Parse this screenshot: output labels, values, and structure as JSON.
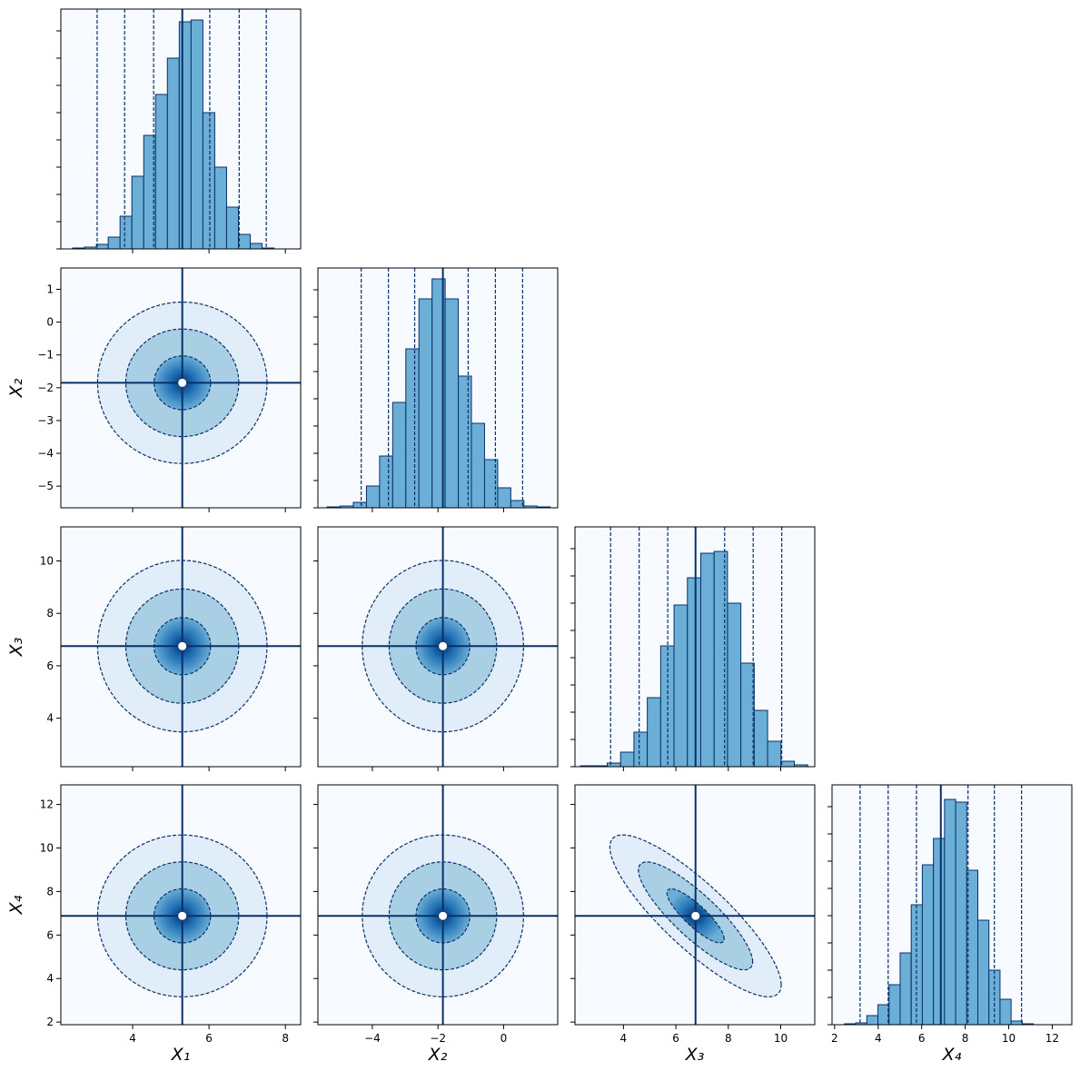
{
  "chart_data": {
    "type": "corner",
    "labels": [
      "X₁",
      "X₂",
      "X₃",
      "X₄"
    ],
    "limits": [
      [
        2.12,
        8.4
      ],
      [
        -5.66,
        1.65
      ],
      [
        2.15,
        11.3
      ],
      [
        1.88,
        12.9
      ]
    ],
    "xticks": [
      [
        4,
        6,
        8
      ],
      [
        {
          "value": -4,
          "label": "−4"
        },
        {
          "value": -2,
          "label": "−2"
        },
        0
      ],
      [
        4,
        6,
        8,
        10
      ],
      [
        2,
        4,
        6,
        8,
        10,
        12
      ]
    ],
    "yticks": [
      [],
      [
        1,
        0,
        {
          "value": -1,
          "label": "−1"
        },
        {
          "value": -2,
          "label": "−2"
        },
        {
          "value": -3,
          "label": "−3"
        },
        {
          "value": -4,
          "label": "−4"
        },
        {
          "value": -5,
          "label": "−5"
        }
      ],
      [
        4,
        6,
        8,
        10
      ],
      [
        2,
        4,
        6,
        8,
        10,
        12
      ]
    ],
    "truths": [
      5.3,
      -1.85,
      6.75,
      6.88
    ],
    "quantile_lines": [
      [
        3.07,
        3.79,
        4.55,
        6.02,
        6.79,
        7.5
      ],
      [
        -4.34,
        -3.51,
        -2.71,
        -1.08,
        -0.25,
        0.58
      ],
      [
        3.51,
        4.6,
        5.69,
        7.86,
        8.95,
        10.04
      ],
      [
        3.17,
        4.46,
        5.76,
        8.13,
        9.34,
        10.59
      ]
    ],
    "histograms": [
      {
        "bins": [
          2.43,
          2.74,
          3.05,
          3.36,
          3.67,
          3.98,
          4.29,
          4.6,
          4.91,
          5.22,
          5.53,
          5.84,
          6.15,
          6.46,
          6.77,
          7.08,
          7.39,
          7.7,
          8.01
        ],
        "counts": [
          1,
          2,
          5,
          13,
          36,
          80,
          125,
          170,
          210,
          250,
          252,
          150,
          90,
          46,
          16,
          6,
          1,
          0
        ]
      },
      {
        "bins": [
          -5.38,
          -4.98,
          -4.58,
          -4.18,
          -3.78,
          -3.38,
          -2.98,
          -2.58,
          -2.18,
          -1.78,
          -1.38,
          -0.98,
          -0.58,
          -0.18,
          0.22,
          0.62,
          1.02,
          1.42
        ],
        "counts": [
          1,
          2,
          6,
          24,
          57,
          116,
          175,
          230,
          252,
          230,
          145,
          93,
          53,
          22,
          8,
          2,
          1
        ]
      },
      {
        "bins": [
          2.36,
          2.87,
          3.38,
          3.89,
          4.4,
          4.91,
          5.42,
          5.93,
          6.44,
          6.95,
          7.46,
          7.97,
          8.48,
          8.99,
          9.5,
          10.01,
          10.52,
          11.03
        ],
        "counts": [
          1,
          1,
          4,
          16,
          38,
          76,
          133,
          178,
          208,
          235,
          237,
          180,
          114,
          62,
          28,
          6,
          2
        ]
      },
      {
        "bins": [
          2.46,
          2.97,
          3.48,
          3.99,
          4.5,
          5.01,
          5.52,
          6.03,
          6.54,
          7.05,
          7.56,
          8.07,
          8.58,
          9.09,
          9.6,
          10.11,
          10.62,
          11.13
        ],
        "counts": [
          1,
          2,
          10,
          22,
          44,
          79,
          132,
          176,
          205,
          248,
          245,
          170,
          115,
          60,
          28,
          4,
          1
        ]
      }
    ],
    "hist_ylim": [
      0,
      264
    ],
    "hist_yticks": [
      0,
      30,
      60,
      90,
      120,
      150,
      180,
      210,
      240
    ],
    "sigma": [
      0.74,
      0.82,
      1.09,
      1.24
    ],
    "rho": [
      [],
      [
        0
      ],
      [
        0,
        0
      ],
      [
        0,
        0,
        -0.85
      ]
    ],
    "contour_levels": [
      1,
      2,
      3
    ],
    "hist_color": "#6baed6",
    "edge_color": "#08306b",
    "background": "#f7fbff"
  }
}
